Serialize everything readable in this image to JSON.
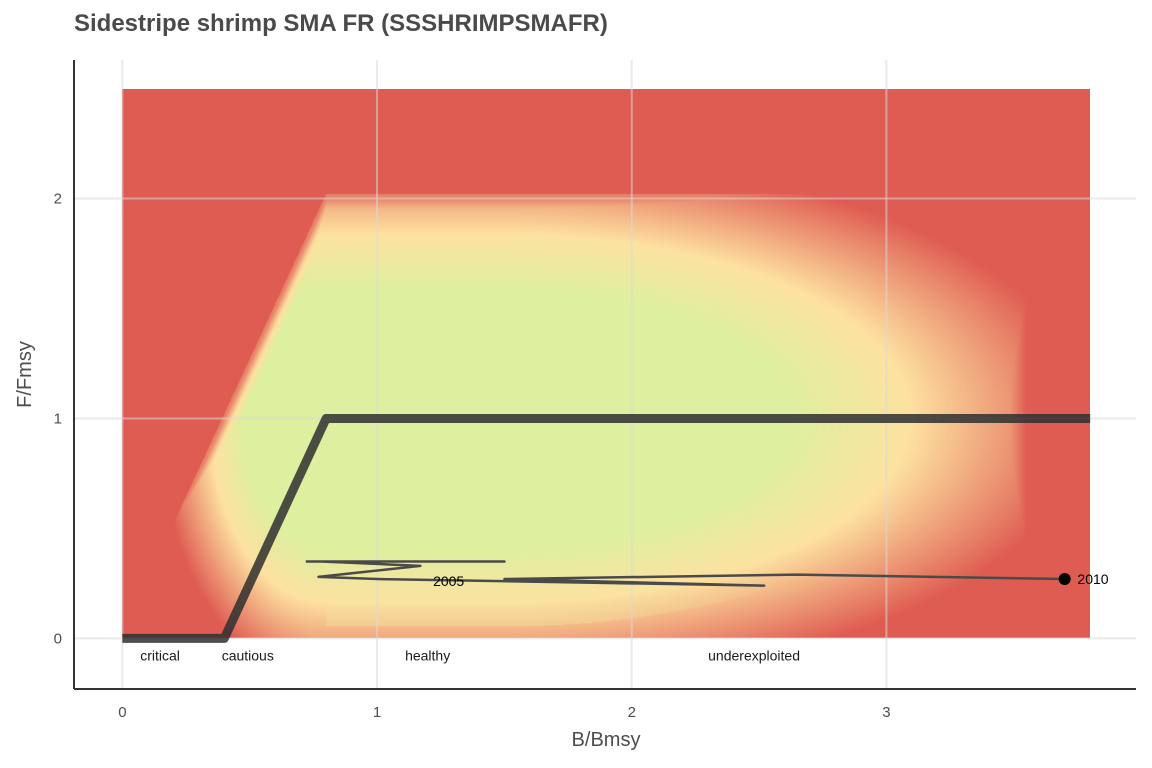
{
  "chart_data": {
    "type": "line",
    "title": "Sidestripe shrimp SMA FR (SSSHRIMPSMAFR)",
    "xlabel": "B/Bmsy",
    "ylabel": "F/Fmsy",
    "xlim": [
      -0.19,
      3.98
    ],
    "ylim": [
      -0.23,
      2.63
    ],
    "x_ticks": [
      0,
      1,
      2,
      3
    ],
    "y_ticks": [
      0,
      1,
      2
    ],
    "grid": true,
    "background": {
      "type": "heatmap",
      "x_range": [
        0,
        3.8
      ],
      "y_range": [
        0,
        2.5
      ],
      "colors": {
        "bad": "#df5c52",
        "mid": "#fde1a0",
        "good": "#45a873"
      }
    },
    "zones": [
      {
        "label": "critical",
        "x": 0.07,
        "y": -0.1
      },
      {
        "label": "cautious",
        "x": 0.39,
        "y": -0.1
      },
      {
        "label": "healthy",
        "x": 1.11,
        "y": -0.1
      },
      {
        "label": "underexploited",
        "x": 2.3,
        "y": -0.1
      }
    ],
    "harvest_control_rule": {
      "x": [
        0,
        0.4,
        0.8,
        3.8
      ],
      "y": [
        0,
        0,
        1,
        1
      ],
      "color": "#2f2f2f"
    },
    "series": [
      {
        "x": [
          0.72,
          1.5,
          0.78,
          1.17,
          0.77,
          1.0,
          2.52,
          1.5,
          2.65,
          3.7
        ],
        "y": [
          0.35,
          0.35,
          0.35,
          0.33,
          0.28,
          0.27,
          0.24,
          0.27,
          0.29,
          0.27
        ],
        "color": "#4a4a4a"
      }
    ],
    "annotations": [
      {
        "text": "2005",
        "x": 1.22,
        "y": 0.26
      },
      {
        "text": "2010",
        "x": 3.75,
        "y": 0.27
      }
    ],
    "last_point": {
      "x": 3.7,
      "y": 0.27
    }
  }
}
